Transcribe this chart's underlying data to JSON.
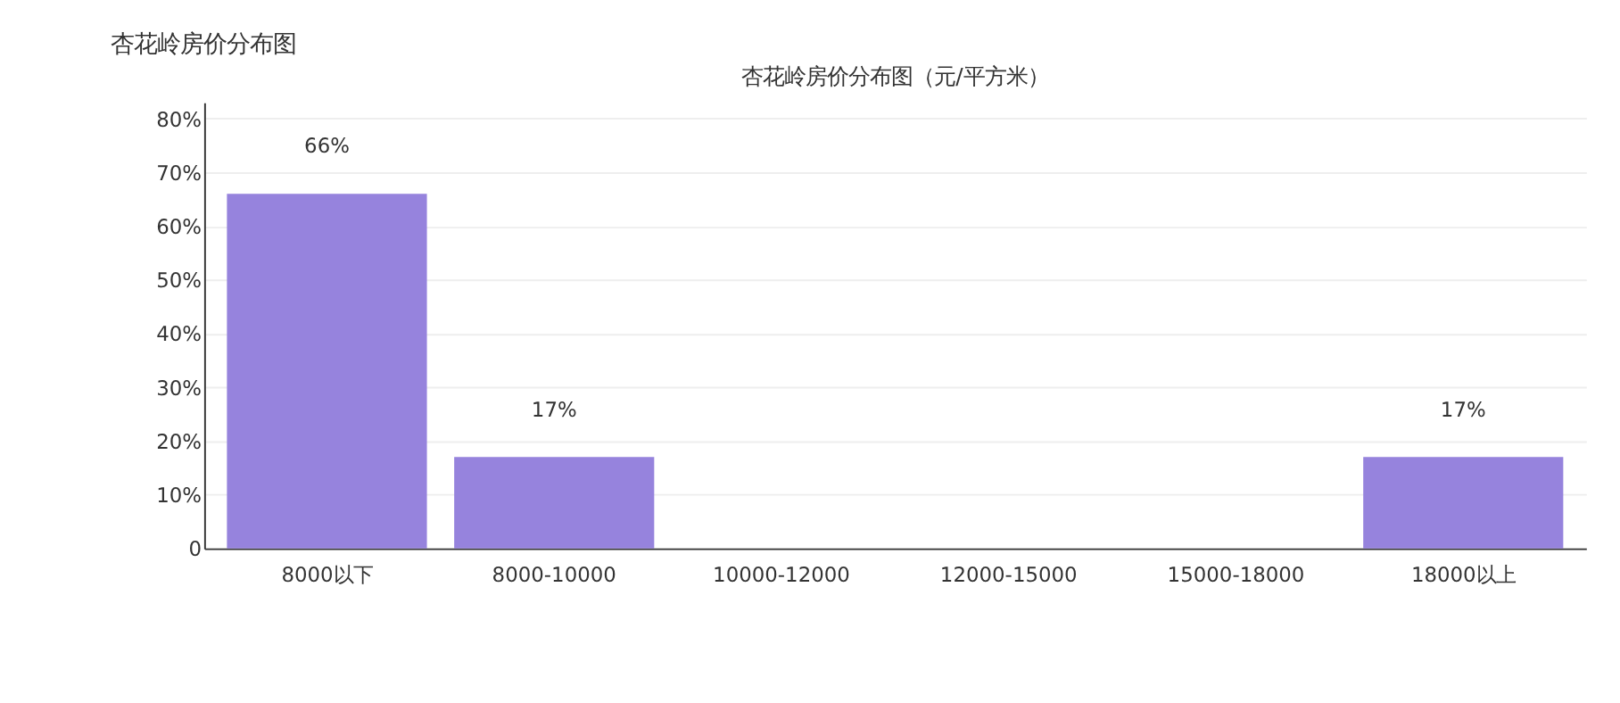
{
  "chart_data": {
    "type": "bar",
    "title": "杏花岭房价分布图",
    "subtitle": "杏花岭房价分布图（元/平方米）",
    "categories": [
      "8000以下",
      "8000-10000",
      "10000-12000",
      "12000-15000",
      "15000-18000",
      "18000以上"
    ],
    "values": [
      66,
      17,
      0,
      0,
      0,
      17
    ],
    "value_labels": [
      "66%",
      "17%",
      null,
      null,
      null,
      "17%"
    ],
    "color": "#9683dd",
    "ylim": [
      0,
      83
    ],
    "yticks": [
      {
        "value": 0,
        "label": "0"
      },
      {
        "value": 10,
        "label": "10%"
      },
      {
        "value": 20,
        "label": "20%"
      },
      {
        "value": 30,
        "label": "30%"
      },
      {
        "value": 40,
        "label": "40%"
      },
      {
        "value": 50,
        "label": "50%"
      },
      {
        "value": 60,
        "label": "60%"
      },
      {
        "value": 70,
        "label": "70%"
      },
      {
        "value": 80,
        "label": "80%"
      }
    ],
    "grid": "y"
  }
}
